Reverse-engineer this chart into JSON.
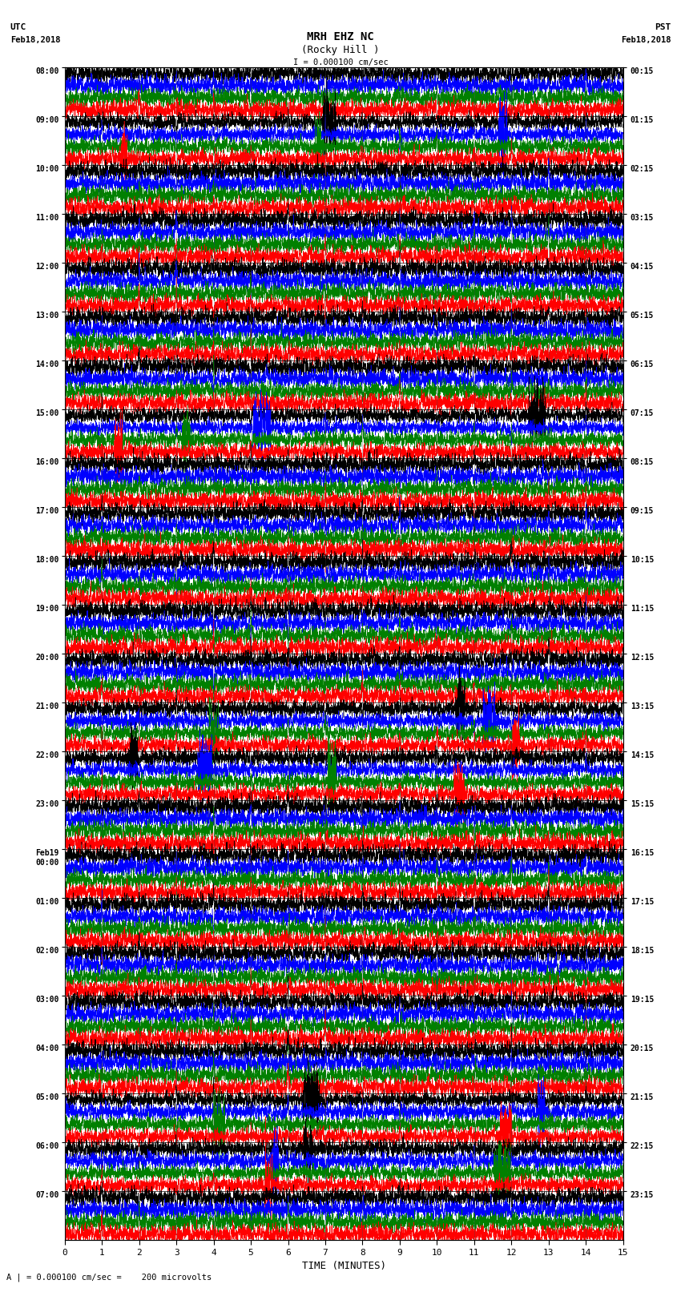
{
  "title_line1": "MRH EHZ NC",
  "title_line2": "(Rocky Hill )",
  "scale_label": "I = 0.000100 cm/sec",
  "bottom_label": "A | = 0.000100 cm/sec =    200 microvolts",
  "xlabel": "TIME (MINUTES)",
  "left_times_utc": [
    "08:00",
    "09:00",
    "10:00",
    "11:00",
    "12:00",
    "13:00",
    "14:00",
    "15:00",
    "16:00",
    "17:00",
    "18:00",
    "19:00",
    "20:00",
    "21:00",
    "22:00",
    "23:00",
    "Feb19\n00:00",
    "01:00",
    "02:00",
    "03:00",
    "04:00",
    "05:00",
    "06:00",
    "07:00"
  ],
  "right_times_pst": [
    "00:15",
    "01:15",
    "02:15",
    "03:15",
    "04:15",
    "05:15",
    "06:15",
    "07:15",
    "08:15",
    "09:15",
    "10:15",
    "11:15",
    "12:15",
    "13:15",
    "14:15",
    "15:15",
    "16:15",
    "17:15",
    "18:15",
    "19:15",
    "20:15",
    "21:15",
    "22:15",
    "23:15"
  ],
  "n_rows": 24,
  "trace_colors": [
    "black",
    "blue",
    "green",
    "red"
  ],
  "bg_color": "white",
  "xmin": 0,
  "xmax": 15,
  "xticks": [
    0,
    1,
    2,
    3,
    4,
    5,
    6,
    7,
    8,
    9,
    10,
    11,
    12,
    13,
    14,
    15
  ],
  "figsize": [
    8.5,
    16.13
  ],
  "dpi": 100
}
